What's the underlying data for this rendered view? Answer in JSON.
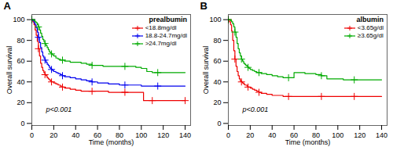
{
  "chart_data": [
    {
      "type": "line",
      "title": "prealbumin",
      "xlabel": "Time (months)",
      "ylabel": "Overall survival",
      "annotations": [
        "A",
        "p<0.001"
      ],
      "xlim": [
        0,
        145
      ],
      "ylim": [
        -2,
        105
      ],
      "xticks": [
        0,
        20,
        40,
        60,
        80,
        100,
        120,
        140
      ],
      "yticks": [
        0,
        20,
        40,
        60,
        80,
        100
      ],
      "line_style": "step",
      "marker": "plus",
      "legend": "upper right",
      "grid": false,
      "series": [
        {
          "name": "<18.8mg/dl",
          "color": "#EE0000",
          "x": [
            0,
            1,
            2,
            3,
            4,
            5,
            6,
            7,
            8,
            9,
            10,
            11,
            12,
            13,
            14,
            15,
            16,
            17,
            18,
            19,
            20,
            22,
            24,
            26,
            28,
            30,
            35,
            40,
            45,
            50,
            55,
            60,
            65,
            70,
            75,
            80,
            85,
            90,
            95,
            100,
            102,
            105,
            110,
            115,
            120,
            125,
            130,
            135,
            140
          ],
          "values": [
            100,
            98,
            95,
            90,
            85,
            79,
            72,
            65,
            58,
            54,
            51,
            49,
            47,
            46,
            44,
            43,
            42,
            41,
            40,
            40,
            39,
            38,
            37,
            36,
            35,
            34,
            33,
            32,
            31,
            31,
            31,
            31,
            31,
            30,
            30,
            30,
            30,
            30,
            30,
            30,
            22,
            22,
            22,
            22,
            22,
            22,
            22,
            22,
            22
          ]
        },
        {
          "name": "18.8-24.7mg/dl",
          "color": "#0000EE",
          "x": [
            0,
            1,
            2,
            3,
            4,
            5,
            6,
            7,
            8,
            9,
            10,
            11,
            12,
            13,
            14,
            15,
            16,
            17,
            18,
            19,
            20,
            22,
            24,
            26,
            28,
            30,
            35,
            40,
            45,
            50,
            55,
            60,
            65,
            70,
            75,
            80,
            85,
            90,
            95,
            100,
            105,
            110,
            115,
            120,
            125,
            130,
            135,
            140
          ],
          "values": [
            100,
            99,
            97,
            95,
            92,
            88,
            83,
            78,
            73,
            69,
            65,
            63,
            61,
            59,
            57,
            56,
            54,
            53,
            52,
            51,
            50,
            49,
            48,
            47,
            46,
            45,
            44,
            43,
            42,
            41,
            40,
            39,
            39,
            38,
            38,
            37,
            37,
            37,
            37,
            36,
            36,
            36,
            36,
            36,
            36,
            36,
            36,
            36
          ]
        },
        {
          "name": ">24.7mg/dl",
          "color": "#00AA00",
          "x": [
            0,
            1,
            2,
            3,
            4,
            5,
            6,
            7,
            8,
            9,
            10,
            11,
            12,
            13,
            14,
            15,
            16,
            17,
            18,
            19,
            20,
            22,
            24,
            26,
            28,
            30,
            35,
            40,
            45,
            50,
            55,
            60,
            65,
            70,
            75,
            80,
            85,
            90,
            95,
            100,
            105,
            110,
            115,
            120,
            125,
            130,
            135,
            140
          ],
          "values": [
            100,
            100,
            99,
            98,
            97,
            95,
            93,
            90,
            87,
            84,
            81,
            79,
            77,
            75,
            73,
            71,
            69,
            68,
            67,
            66,
            65,
            63,
            62,
            61,
            61,
            60,
            59,
            59,
            58,
            57,
            56,
            56,
            55,
            55,
            55,
            55,
            55,
            55,
            54,
            53,
            50,
            49,
            49,
            49,
            49,
            49,
            49,
            49
          ]
        }
      ]
    },
    {
      "type": "line",
      "title": "albumin",
      "xlabel": "Time (months)",
      "ylabel": "Overall survival",
      "annotations": [
        "B",
        "p<0.001"
      ],
      "xlim": [
        0,
        145
      ],
      "ylim": [
        -2,
        105
      ],
      "xticks": [
        0,
        20,
        40,
        60,
        80,
        100,
        120,
        140
      ],
      "yticks": [
        0,
        20,
        40,
        60,
        80,
        100
      ],
      "line_style": "step",
      "marker": "plus",
      "legend": "upper right",
      "grid": false,
      "series": [
        {
          "name": "<3.65g/dl",
          "color": "#EE0000",
          "x": [
            0,
            1,
            2,
            3,
            4,
            5,
            6,
            7,
            8,
            9,
            10,
            11,
            12,
            13,
            14,
            15,
            16,
            17,
            18,
            19,
            20,
            22,
            24,
            26,
            28,
            30,
            35,
            40,
            45,
            50,
            55,
            60,
            65,
            70,
            75,
            80,
            85,
            90,
            95,
            100,
            105,
            110,
            115,
            120,
            125,
            130,
            135,
            140
          ],
          "values": [
            100,
            98,
            95,
            89,
            80,
            70,
            62,
            55,
            50,
            46,
            43,
            41,
            40,
            39,
            38,
            37,
            37,
            36,
            35,
            35,
            34,
            33,
            32,
            31,
            30,
            29,
            28,
            27,
            27,
            26,
            26,
            26,
            26,
            26,
            26,
            26,
            26,
            26,
            26,
            26,
            26,
            26,
            26,
            26,
            26,
            26,
            26,
            26
          ]
        },
        {
          "name": "≥3.65g/dl",
          "color": "#00AA00",
          "x": [
            0,
            1,
            2,
            3,
            4,
            5,
            6,
            7,
            8,
            9,
            10,
            11,
            12,
            13,
            14,
            15,
            16,
            17,
            18,
            19,
            20,
            22,
            24,
            26,
            28,
            30,
            35,
            40,
            45,
            50,
            55,
            60,
            65,
            70,
            75,
            80,
            85,
            90,
            95,
            100,
            105,
            110,
            115,
            120,
            125,
            130,
            135,
            140
          ],
          "values": [
            100,
            100,
            99,
            98,
            96,
            93,
            88,
            83,
            77,
            72,
            68,
            65,
            62,
            60,
            58,
            57,
            56,
            55,
            54,
            53,
            52,
            51,
            50,
            49,
            49,
            48,
            47,
            46,
            45,
            44,
            44,
            49,
            49,
            48,
            48,
            47,
            46,
            43,
            43,
            43,
            42,
            42,
            42,
            42,
            42,
            42,
            42,
            42
          ]
        }
      ]
    }
  ]
}
